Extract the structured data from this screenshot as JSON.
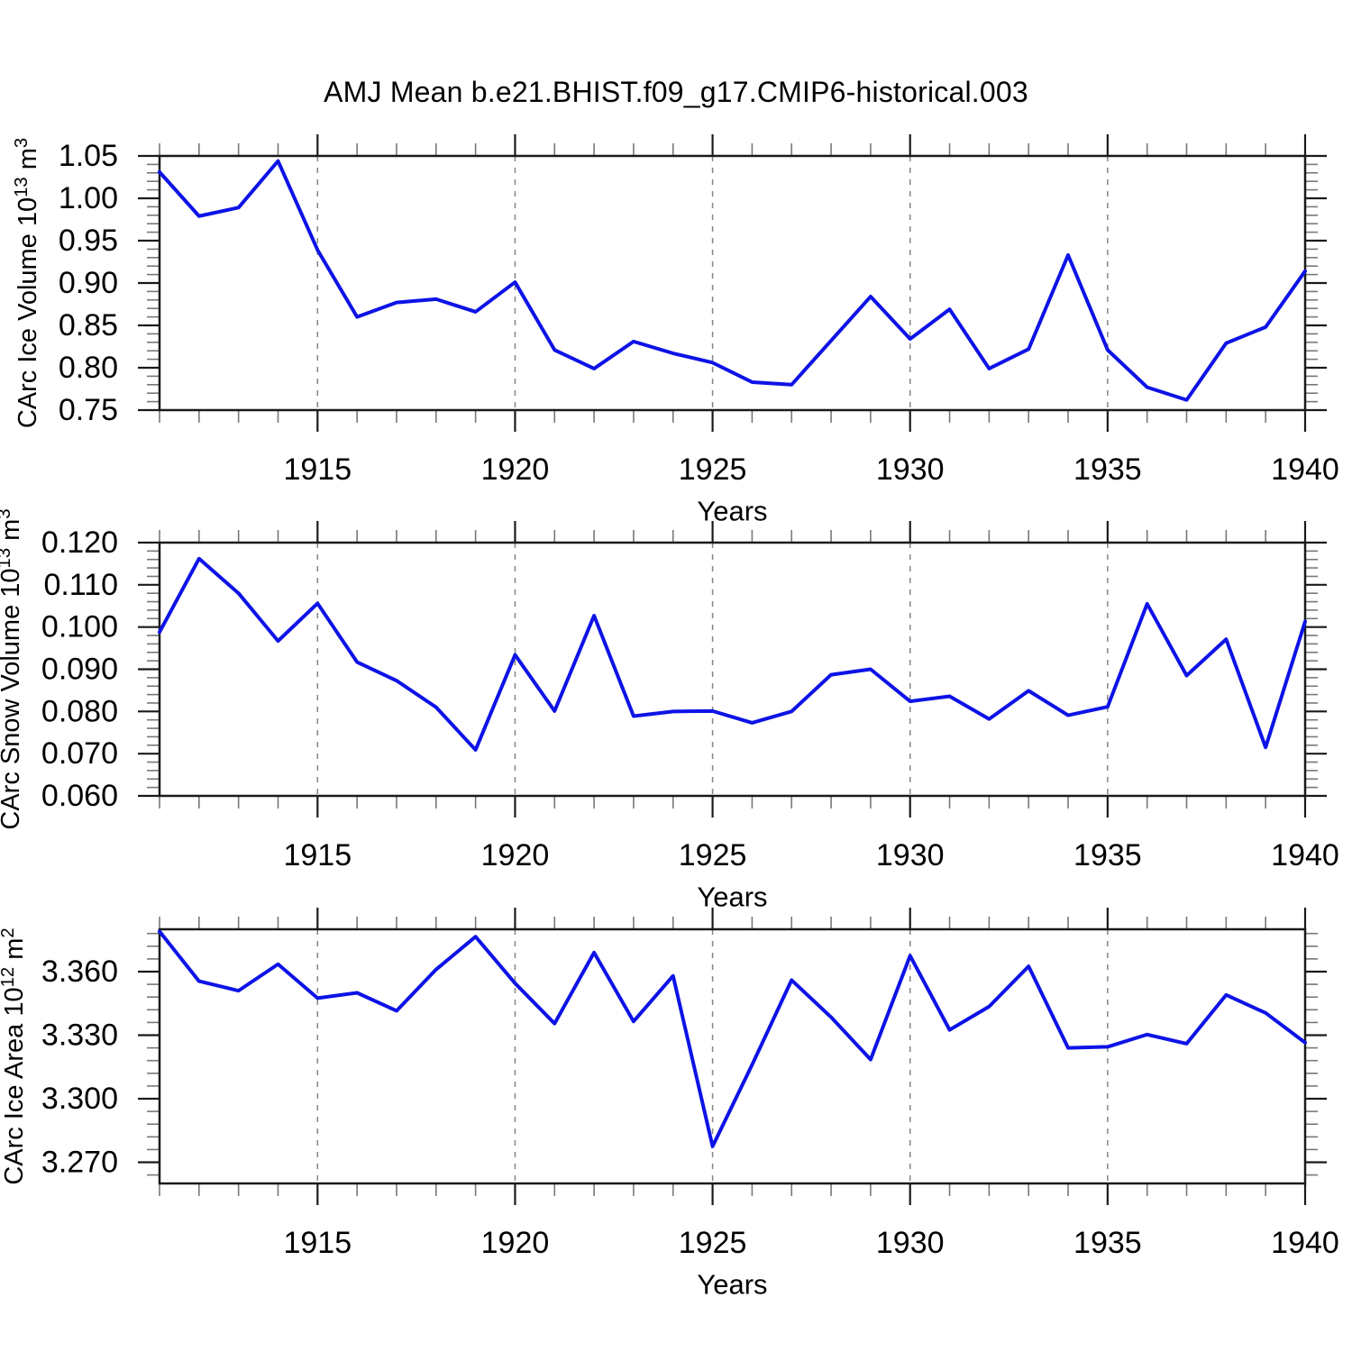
{
  "title": "AMJ Mean b.e21.BHIST.f09_g17.CMIP6-historical.003",
  "style": {
    "line_color": "#0d13e6",
    "grid_color": "#858585",
    "axis_color": "#1a1a1a",
    "minor_tick_color": "#787878",
    "text_color": "#000000",
    "background": "#ffffff"
  },
  "chart_data": [
    {
      "id": "ice-volume",
      "type": "line",
      "xlabel": "Years",
      "ylabel": "CArc Ice Volume 10^13 m^3",
      "ylabel_parts": [
        {
          "t": "CArc Ice Volume 10"
        },
        {
          "t": "13",
          "sup": true
        },
        {
          "t": " m"
        },
        {
          "t": "3",
          "sup": true
        }
      ],
      "x": [
        1911,
        1912,
        1913,
        1914,
        1915,
        1916,
        1917,
        1918,
        1919,
        1920,
        1921,
        1922,
        1923,
        1924,
        1925,
        1926,
        1927,
        1928,
        1929,
        1930,
        1931,
        1932,
        1933,
        1934,
        1935,
        1936,
        1937,
        1938,
        1939,
        1940
      ],
      "values": [
        1.031,
        0.979,
        0.989,
        1.044,
        0.939,
        0.86,
        0.877,
        0.881,
        0.866,
        0.901,
        0.821,
        0.799,
        0.831,
        0.817,
        0.806,
        0.783,
        0.78,
        0.832,
        0.884,
        0.834,
        0.869,
        0.799,
        0.822,
        0.933,
        0.821,
        0.777,
        0.762,
        0.829,
        0.848,
        0.914
      ],
      "xlim": [
        1911,
        1940
      ],
      "ylim": [
        0.75,
        1.05
      ],
      "xticks": [
        1915,
        1920,
        1925,
        1930,
        1935,
        1940
      ],
      "xtick_labels": [
        "1915",
        "1920",
        "1925",
        "1930",
        "1935",
        "1940"
      ],
      "x_minor_step": 1,
      "yticks": [
        0.75,
        0.8,
        0.85,
        0.9,
        0.95,
        1.0,
        1.05
      ],
      "ytick_labels": [
        "0.75",
        "0.80",
        "0.85",
        "0.90",
        "0.95",
        "1.00",
        "1.05"
      ],
      "y_minor_step": 0.01,
      "grid_x": [
        1915,
        1920,
        1925,
        1930,
        1935
      ],
      "grid_style": "vertical-dashed",
      "legend": "none"
    },
    {
      "id": "snow-volume",
      "type": "line",
      "xlabel": "Years",
      "ylabel": "CArc Snow Volume 10^13 m^3",
      "ylabel_parts": [
        {
          "t": "CArc Snow Volume 10"
        },
        {
          "t": "13",
          "sup": true
        },
        {
          "t": " m"
        },
        {
          "t": "3",
          "sup": true
        }
      ],
      "x": [
        1911,
        1912,
        1913,
        1914,
        1915,
        1916,
        1917,
        1918,
        1919,
        1920,
        1921,
        1922,
        1923,
        1924,
        1925,
        1926,
        1927,
        1928,
        1929,
        1930,
        1931,
        1932,
        1933,
        1934,
        1935,
        1936,
        1937,
        1938,
        1939,
        1940
      ],
      "values": [
        0.0988,
        0.1162,
        0.108,
        0.0967,
        0.1056,
        0.0917,
        0.0873,
        0.081,
        0.0709,
        0.0934,
        0.0801,
        0.1027,
        0.0789,
        0.08,
        0.0801,
        0.0773,
        0.08,
        0.0887,
        0.09,
        0.0824,
        0.0836,
        0.0782,
        0.0849,
        0.0791,
        0.0811,
        0.1055,
        0.0885,
        0.0971,
        0.0715,
        0.1013
      ],
      "xlim": [
        1911,
        1940
      ],
      "ylim": [
        0.06,
        0.12
      ],
      "xticks": [
        1915,
        1920,
        1925,
        1930,
        1935,
        1940
      ],
      "xtick_labels": [
        "1915",
        "1920",
        "1925",
        "1930",
        "1935",
        "1940"
      ],
      "x_minor_step": 1,
      "yticks": [
        0.06,
        0.07,
        0.08,
        0.09,
        0.1,
        0.11,
        0.12
      ],
      "ytick_labels": [
        "0.060",
        "0.070",
        "0.080",
        "0.090",
        "0.100",
        "0.110",
        "0.120"
      ],
      "y_minor_step": 0.002,
      "grid_x": [
        1915,
        1920,
        1925,
        1930,
        1935
      ],
      "grid_style": "vertical-dashed",
      "legend": "none"
    },
    {
      "id": "ice-area",
      "type": "line",
      "xlabel": "Years",
      "ylabel": "CArc Ice Area 10^12 m^2",
      "ylabel_parts": [
        {
          "t": "CArc Ice Area 10"
        },
        {
          "t": "12",
          "sup": true
        },
        {
          "t": " m"
        },
        {
          "t": "2",
          "sup": true
        }
      ],
      "x": [
        1911,
        1912,
        1913,
        1914,
        1915,
        1916,
        1917,
        1918,
        1919,
        1920,
        1921,
        1922,
        1923,
        1924,
        1925,
        1926,
        1927,
        1928,
        1929,
        1930,
        1931,
        1932,
        1933,
        1934,
        1935,
        1936,
        1937,
        1938,
        1939,
        1940
      ],
      "values": [
        3.379,
        3.3555,
        3.351,
        3.3635,
        3.3475,
        3.35,
        3.3415,
        3.361,
        3.3765,
        3.3545,
        3.3355,
        3.369,
        3.3365,
        3.358,
        3.2775,
        3.316,
        3.356,
        3.3385,
        3.3185,
        3.3675,
        3.3325,
        3.3435,
        3.3625,
        3.324,
        3.3245,
        3.3303,
        3.326,
        3.349,
        3.3405,
        3.3265
      ],
      "xlim": [
        1911,
        1940
      ],
      "ylim": [
        3.26,
        3.38
      ],
      "xticks": [
        1915,
        1920,
        1925,
        1930,
        1935,
        1940
      ],
      "xtick_labels": [
        "1915",
        "1920",
        "1925",
        "1930",
        "1935",
        "1940"
      ],
      "x_minor_step": 1,
      "yticks": [
        3.27,
        3.3,
        3.33,
        3.36
      ],
      "ytick_labels": [
        "3.270",
        "3.300",
        "3.330",
        "3.360"
      ],
      "y_minor_step": 0.006,
      "grid_x": [
        1915,
        1920,
        1925,
        1930,
        1935
      ],
      "grid_style": "vertical-dashed",
      "legend": "none"
    }
  ]
}
